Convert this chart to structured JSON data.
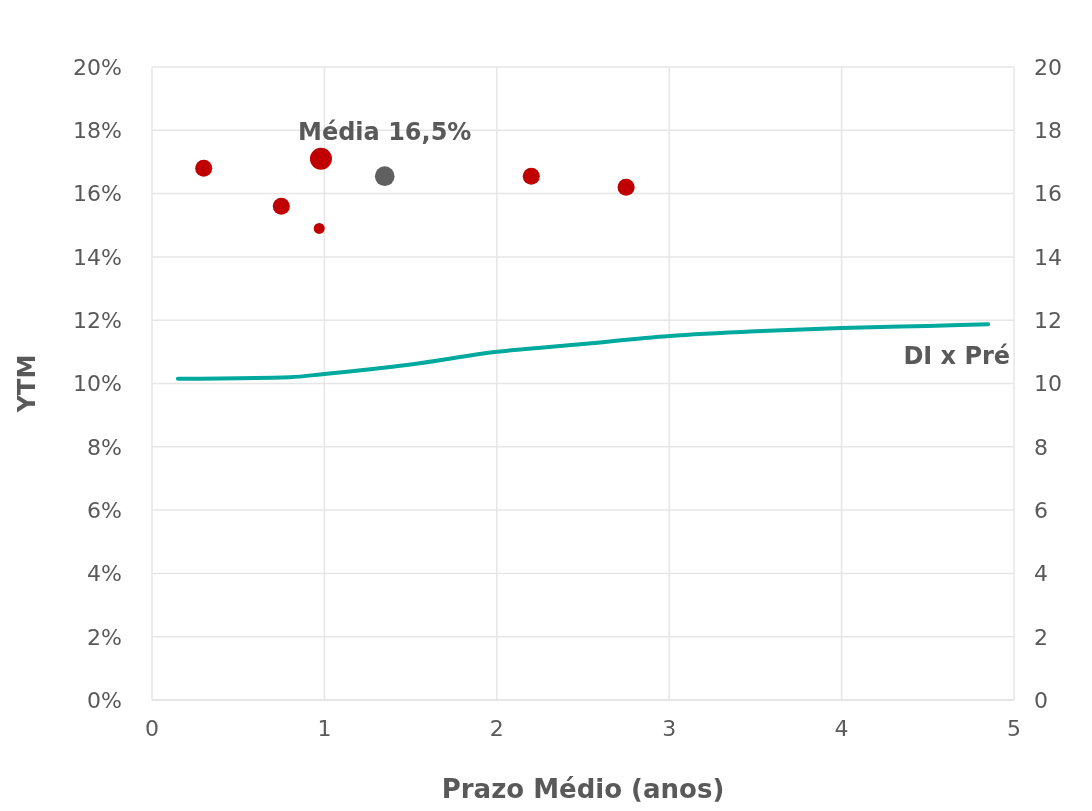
{
  "chart_data": {
    "type": "bubble",
    "xlabel": "Prazo Médio (anos)",
    "ylabel": "YTM",
    "xlim": [
      0,
      5
    ],
    "xticks": [
      0,
      1,
      2,
      3,
      4,
      5
    ],
    "ylim": [
      0,
      20
    ],
    "yticks": [
      {
        "value": 0,
        "label": "0%"
      },
      {
        "value": 2,
        "label": "2%"
      },
      {
        "value": 4,
        "label": "4%"
      },
      {
        "value": 6,
        "label": "6%"
      },
      {
        "value": 8,
        "label": "8%"
      },
      {
        "value": 10,
        "label": "10%"
      },
      {
        "value": 12,
        "label": "12%"
      },
      {
        "value": 14,
        "label": "14%"
      },
      {
        "value": 16,
        "label": "16%"
      },
      {
        "value": 18,
        "label": "18%"
      },
      {
        "value": 20,
        "label": "20%"
      }
    ],
    "y2lim": [
      0,
      20
    ],
    "y2ticks": [
      0,
      2,
      4,
      6,
      8,
      10,
      12,
      14,
      16,
      18,
      20
    ],
    "grid": true,
    "series": [
      {
        "color": "#c00000",
        "x": [
          0.3,
          0.75,
          0.97,
          0.98,
          2.2,
          2.75
        ],
        "values": [
          16.8,
          15.6,
          14.9,
          17.1,
          16.55,
          16.2
        ],
        "sizes": [
          0.6,
          0.6,
          0.25,
          1,
          0.6,
          0.6
        ]
      },
      {
        "color": "#606060",
        "x": [
          1.35
        ],
        "values": [
          16.55
        ],
        "sizes": [
          0.8
        ]
      },
      {
        "type": "line",
        "name": "DI x Pré",
        "color": "#00a99d",
        "x": [
          0.15,
          0.8,
          1.0,
          1.5,
          2.0,
          2.5,
          3.0,
          3.5,
          4.0,
          4.5,
          4.85
        ],
        "values": [
          10.15,
          10.2,
          10.3,
          10.6,
          11.0,
          11.25,
          11.5,
          11.65,
          11.75,
          11.82,
          11.87
        ]
      }
    ],
    "annotations": [
      {
        "text": "Média 16,5%",
        "x": 1.35,
        "y": 16.55
      }
    ]
  }
}
